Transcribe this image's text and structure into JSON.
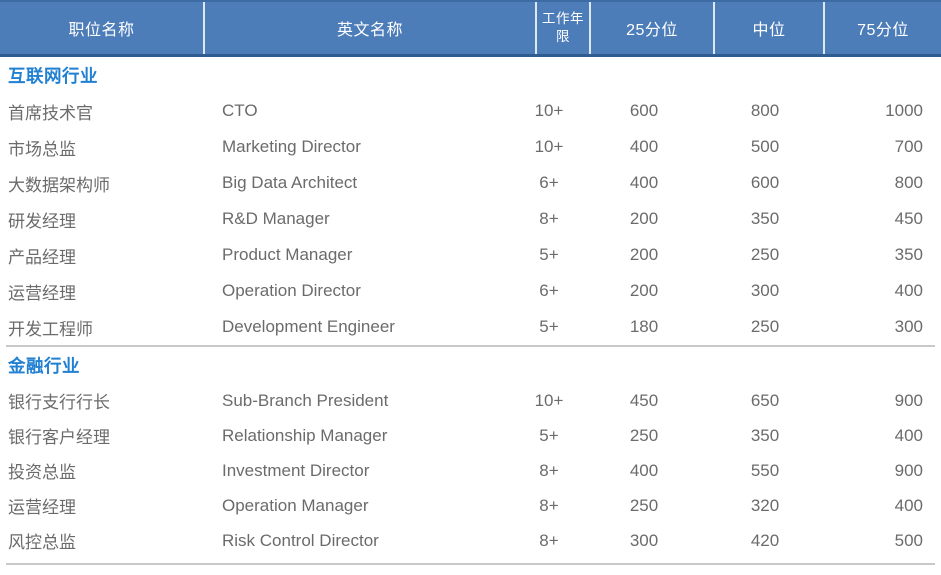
{
  "table": {
    "columns": [
      {
        "label": "职位名称"
      },
      {
        "label": "英文名称"
      },
      {
        "label": "工作年限"
      },
      {
        "label": "25分位"
      },
      {
        "label": "中位"
      },
      {
        "label": "75分位"
      }
    ],
    "sections": [
      {
        "title": "互联网行业",
        "rows": [
          [
            "首席技术官",
            "CTO",
            "10+",
            "600",
            "800",
            "1000"
          ],
          [
            "市场总监",
            "Marketing Director",
            "10+",
            "400",
            "500",
            "700"
          ],
          [
            "大数据架构师",
            "Big Data Architect",
            "6+",
            "400",
            "600",
            "800"
          ],
          [
            "研发经理",
            "R&D Manager",
            "8+",
            "200",
            "350",
            "450"
          ],
          [
            "产品经理",
            "Product Manager",
            "5+",
            "200",
            "250",
            "350"
          ],
          [
            "运营经理",
            "Operation Director",
            "6+",
            "200",
            "300",
            "400"
          ],
          [
            "开发工程师",
            "Development Engineer",
            "5+",
            "180",
            "250",
            "300"
          ]
        ]
      },
      {
        "title": "金融行业",
        "rows": [
          [
            "银行支行行长",
            "Sub-Branch President",
            "10+",
            "450",
            "650",
            "900"
          ],
          [
            "银行客户经理",
            "Relationship Manager",
            "5+",
            "250",
            "350",
            "400"
          ],
          [
            "投资总监",
            "Investment Director",
            "8+",
            "400",
            "550",
            "900"
          ],
          [
            "运营经理",
            "Operation Manager",
            "8+",
            "250",
            "320",
            "400"
          ],
          [
            "风控总监",
            "Risk Control Director",
            "8+",
            "300",
            "420",
            "500"
          ]
        ]
      }
    ]
  },
  "colors": {
    "header_background": "#4c7db9",
    "header_border_bottom": "#2e5c91",
    "header_text": "#ffffff",
    "section_title": "#2180d2",
    "body_text": "#6b6b6b",
    "divider": "#c9c9c9"
  }
}
